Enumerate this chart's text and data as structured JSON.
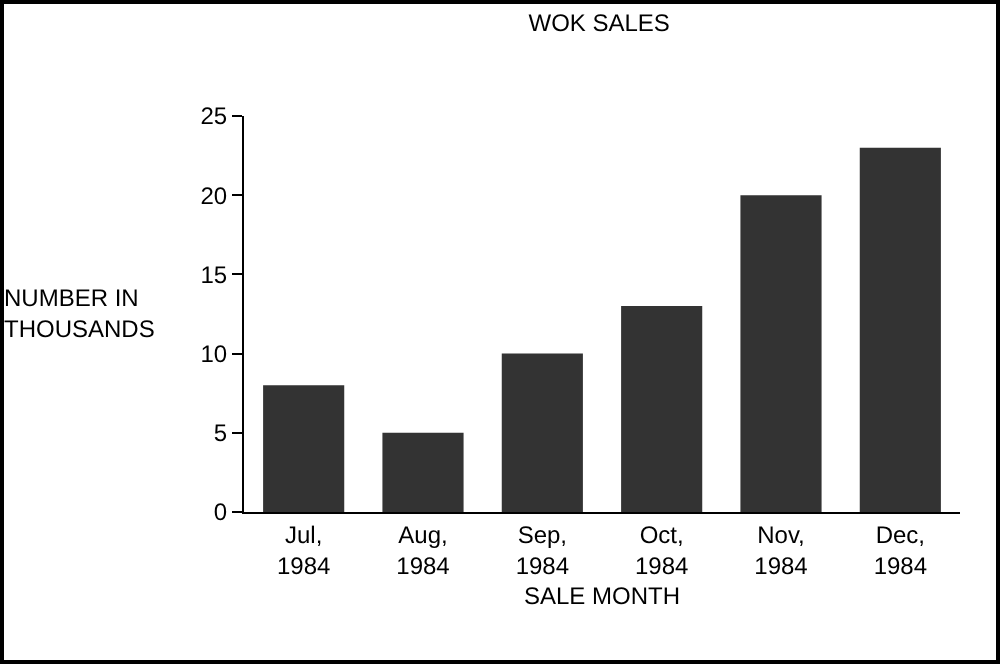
{
  "chart_data": {
    "type": "bar",
    "title": "WOK SALES",
    "xlabel": "SALE MONTH",
    "ylabel": "NUMBER IN\nTHOUSANDS",
    "categories": [
      "Jul,\n1984",
      "Aug,\n1984",
      "Sep,\n1984",
      "Oct,\n1984",
      "Nov,\n1984",
      "Dec,\n1984"
    ],
    "values": [
      8,
      5,
      10,
      13,
      20,
      23
    ],
    "color": "#333333",
    "ylim": [
      0,
      25
    ],
    "yticks": [
      0,
      5,
      10,
      15,
      20,
      25
    ],
    "grid": false,
    "legend": false
  }
}
